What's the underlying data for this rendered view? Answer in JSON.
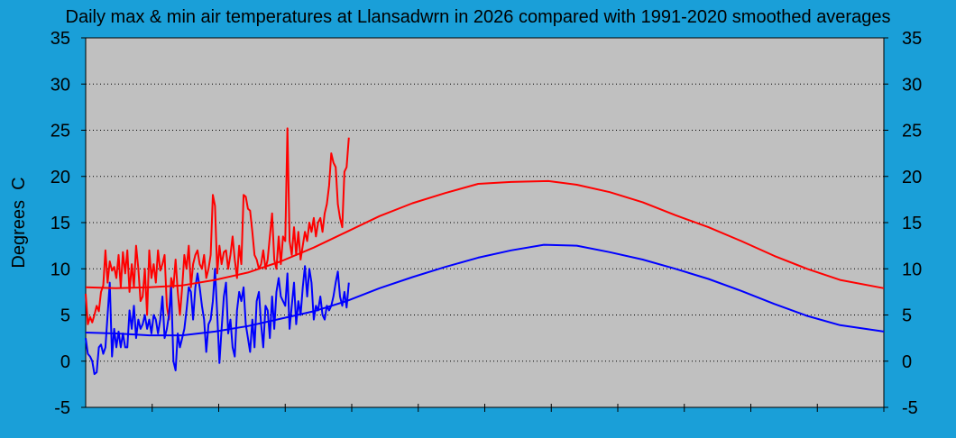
{
  "chart_data": {
    "type": "line",
    "title": "Daily max & min air temperatures at Llansadwrn in 2026 compared with 1991-2020 smoothed averages",
    "ylabel": "Degrees  C",
    "xlabel": "",
    "ylim": [
      -5,
      35
    ],
    "yticks": [
      35,
      30,
      25,
      20,
      15,
      10,
      5,
      0,
      -5
    ],
    "xlim": [
      1,
      365
    ],
    "grid": true,
    "colors": {
      "background": "#1a9fd8",
      "plot_area": "#c0c0c0",
      "max": "#ff0000",
      "min": "#0000ff"
    },
    "series": [
      {
        "role": "daily_max",
        "color": "#ff0000",
        "x": [
          1,
          2,
          3,
          4,
          5,
          6,
          7,
          8,
          9,
          10,
          11,
          12,
          13,
          14,
          15,
          16,
          17,
          18,
          19,
          20,
          21,
          22,
          23,
          24,
          25,
          26,
          27,
          28,
          29,
          30,
          31,
          32,
          33,
          34,
          35,
          36,
          37,
          38,
          39,
          40,
          41,
          42,
          43,
          44,
          45,
          46,
          47,
          48,
          49,
          50,
          51,
          52,
          53,
          54,
          55,
          56,
          57,
          58,
          59,
          60,
          61,
          62,
          63,
          64,
          65,
          66,
          67,
          68,
          69,
          70,
          71,
          72,
          73,
          74,
          75,
          76,
          77,
          78,
          79,
          80,
          81,
          82,
          83,
          84,
          85,
          86,
          87,
          88,
          89,
          90,
          91,
          92,
          93,
          94,
          95,
          96,
          97,
          98,
          99,
          100,
          101,
          102,
          103,
          104,
          105,
          106,
          107,
          108,
          109,
          110,
          111,
          112,
          113,
          114,
          115,
          116,
          117,
          118,
          119,
          120,
          121
        ],
        "y": [
          7.3,
          4.0,
          4.8,
          4.2,
          5.0,
          6.0,
          5.4,
          7.5,
          8.2,
          12.0,
          8.5,
          10.8,
          9.8,
          10.2,
          9.0,
          11.5,
          8.0,
          11.8,
          9.5,
          12.0,
          7.5,
          10.5,
          8.0,
          12.5,
          10.0,
          6.5,
          7.0,
          10.0,
          5.0,
          12.0,
          9.0,
          10.5,
          8.5,
          12.0,
          9.8,
          10.5,
          11.5,
          6.0,
          4.5,
          9.0,
          8.0,
          11.0,
          7.5,
          5.0,
          8.0,
          11.5,
          10.0,
          12.5,
          8.0,
          10.5,
          11.5,
          12.0,
          10.5,
          10.0,
          11.5,
          9.0,
          10.0,
          11.5,
          18.0,
          16.8,
          9.5,
          12.5,
          10.5,
          11.8,
          12.0,
          10.0,
          11.5,
          13.5,
          11.0,
          9.0,
          12.5,
          10.5,
          18.0,
          17.8,
          16.5,
          16.3,
          14.0,
          11.5,
          11.0,
          10.0,
          10.5,
          12.0,
          10.0,
          11.0,
          13.5,
          16.0,
          11.0,
          10.0,
          13.5,
          10.5,
          13.5,
          13.0,
          25.2,
          13.0,
          11.5,
          14.5,
          11.5,
          14.0,
          11.0,
          12.5,
          14.0,
          13.0,
          15.0,
          14.0,
          15.5,
          13.5,
          15.0,
          15.5,
          14.0,
          16.0,
          17.0,
          19.0,
          22.5,
          21.5,
          21.0,
          17.0,
          15.5,
          14.5,
          20.5,
          21.0,
          24.2
        ]
      },
      {
        "role": "daily_min",
        "color": "#0000ff",
        "x": [
          1,
          2,
          3,
          4,
          5,
          6,
          7,
          8,
          9,
          10,
          11,
          12,
          13,
          14,
          15,
          16,
          17,
          18,
          19,
          20,
          21,
          22,
          23,
          24,
          25,
          26,
          27,
          28,
          29,
          30,
          31,
          32,
          33,
          34,
          35,
          36,
          37,
          38,
          39,
          40,
          41,
          42,
          43,
          44,
          45,
          46,
          47,
          48,
          49,
          50,
          51,
          52,
          53,
          54,
          55,
          56,
          57,
          58,
          59,
          60,
          61,
          62,
          63,
          64,
          65,
          66,
          67,
          68,
          69,
          70,
          71,
          72,
          73,
          74,
          75,
          76,
          77,
          78,
          79,
          80,
          81,
          82,
          83,
          84,
          85,
          86,
          87,
          88,
          89,
          90,
          91,
          92,
          93,
          94,
          95,
          96,
          97,
          98,
          99,
          100,
          101,
          102,
          103,
          104,
          105,
          106,
          107,
          108,
          109,
          110,
          111,
          112,
          113,
          114,
          115,
          116,
          117,
          118,
          119,
          120,
          121
        ],
        "y": [
          2.5,
          0.8,
          0.5,
          0.0,
          -1.4,
          -1.2,
          1.5,
          1.8,
          0.8,
          1.5,
          5.0,
          8.5,
          0.5,
          3.5,
          1.5,
          3.2,
          1.5,
          3.0,
          1.5,
          1.5,
          5.5,
          3.5,
          6.0,
          2.5,
          4.5,
          3.5,
          4.0,
          5.0,
          3.5,
          4.5,
          3.0,
          5.0,
          4.5,
          3.0,
          4.5,
          7.0,
          2.5,
          3.5,
          5.0,
          8.0,
          0.0,
          -1.0,
          3.0,
          1.5,
          2.5,
          3.5,
          5.5,
          8.0,
          7.5,
          4.5,
          8.0,
          9.5,
          8.0,
          6.0,
          4.5,
          1.0,
          4.0,
          4.5,
          6.5,
          10.0,
          5.0,
          -0.2,
          3.5,
          7.0,
          8.5,
          3.0,
          4.5,
          1.5,
          0.5,
          5.5,
          7.5,
          6.5,
          8.0,
          4.0,
          2.5,
          1.0,
          4.5,
          1.5,
          6.5,
          7.5,
          4.0,
          1.5,
          6.0,
          5.5,
          2.5,
          7.0,
          3.5,
          7.5,
          9.0,
          7.0,
          6.5,
          6.0,
          9.5,
          3.5,
          6.0,
          8.5,
          4.0,
          6.5,
          5.0,
          8.0,
          10.3,
          7.0,
          10.0,
          8.5,
          4.5,
          6.0,
          5.5,
          7.0,
          5.0,
          4.5,
          6.0,
          5.5,
          6.0,
          7.0,
          8.5,
          9.7,
          7.0,
          6.0,
          7.5,
          5.8,
          8.5
        ]
      },
      {
        "role": "average_max",
        "color": "#ff0000",
        "x": [
          1,
          15,
          30,
          45,
          60,
          75,
          90,
          105,
          120,
          135,
          150,
          165,
          180,
          195,
          212,
          225,
          240,
          255,
          270,
          285,
          300,
          315,
          330,
          345,
          365
        ],
        "y": [
          8.0,
          7.9,
          8.0,
          8.2,
          8.8,
          9.6,
          10.8,
          12.3,
          14.0,
          15.7,
          17.1,
          18.2,
          19.2,
          19.4,
          19.5,
          19.1,
          18.3,
          17.2,
          15.8,
          14.5,
          13.0,
          11.4,
          10.0,
          8.8,
          7.9
        ]
      },
      {
        "role": "average_min",
        "color": "#0000ff",
        "x": [
          1,
          15,
          30,
          45,
          60,
          75,
          90,
          105,
          120,
          135,
          150,
          165,
          180,
          195,
          210,
          225,
          240,
          255,
          270,
          285,
          300,
          315,
          330,
          345,
          365
        ],
        "y": [
          3.1,
          3.0,
          2.8,
          2.8,
          3.2,
          3.8,
          4.6,
          5.4,
          6.5,
          7.9,
          9.1,
          10.2,
          11.2,
          12.0,
          12.6,
          12.5,
          11.8,
          11.0,
          10.0,
          8.9,
          7.6,
          6.2,
          4.9,
          3.9,
          3.2
        ]
      }
    ]
  }
}
